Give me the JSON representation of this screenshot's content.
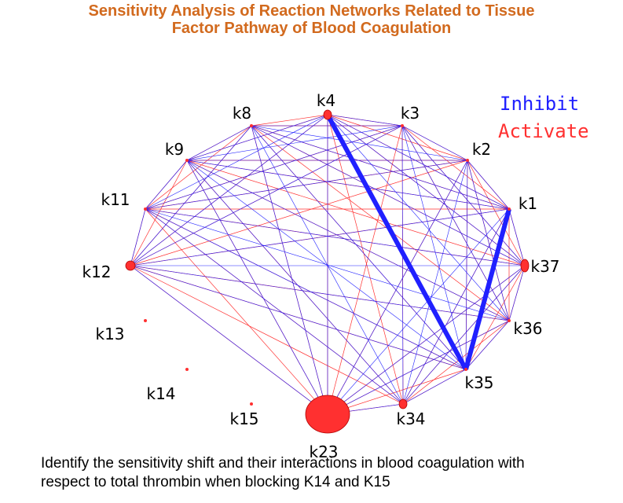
{
  "title": {
    "line1": "Sensitivity Analysis of Reaction Networks Related to Tissue",
    "line2": "Factor Pathway of Blood Coagulation"
  },
  "legend": {
    "inhibit": "Inhibit",
    "activate": "Activate",
    "inhibit_color": "#2020ff",
    "activate_color": "#ff3030"
  },
  "caption": {
    "line1": "Identify the sensitivity shift and their interactions in blood coagulation with",
    "line2": "respect to total thrombin when blocking K14 and K15"
  },
  "nodes": [
    {
      "id": "k4",
      "label": "k4"
    },
    {
      "id": "k3",
      "label": "k3"
    },
    {
      "id": "k2",
      "label": "k2"
    },
    {
      "id": "k1",
      "label": "k1"
    },
    {
      "id": "k37",
      "label": "k37"
    },
    {
      "id": "k36",
      "label": "k36"
    },
    {
      "id": "k35",
      "label": "k35"
    },
    {
      "id": "k34",
      "label": "k34"
    },
    {
      "id": "k23",
      "label": "k23"
    },
    {
      "id": "k15",
      "label": "k15"
    },
    {
      "id": "k14",
      "label": "k14"
    },
    {
      "id": "k13",
      "label": "k13"
    },
    {
      "id": "k12",
      "label": "k12"
    },
    {
      "id": "k11",
      "label": "k11"
    },
    {
      "id": "k9",
      "label": "k9"
    },
    {
      "id": "k8",
      "label": "k8"
    }
  ],
  "strong_inhibit_edges": [
    [
      "k4",
      "k35"
    ],
    [
      "k1",
      "k35"
    ]
  ]
}
